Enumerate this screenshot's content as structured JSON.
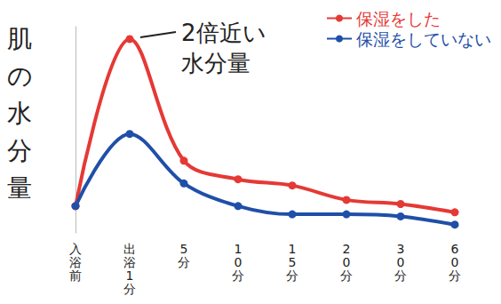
{
  "chart_data": {
    "type": "line",
    "y_label": "肌の水分量",
    "annotation": "2倍近い水分量",
    "categories": [
      "入浴前",
      "出浴1分",
      "5分",
      "10分",
      "15分",
      "20分",
      "30分",
      "60分"
    ],
    "series": [
      {
        "name": "保湿をした",
        "color": "#e53935",
        "values": [
          13,
          94,
          35,
          26,
          23,
          16,
          14,
          10
        ]
      },
      {
        "name": "保湿をしていない",
        "color": "#1f4fa8",
        "values": [
          13,
          48,
          24,
          13,
          9,
          9,
          8,
          4
        ]
      }
    ],
    "ylim": [
      0,
      100
    ],
    "yticks": [],
    "tick_labels": "x",
    "grid": false,
    "legend": "upper right",
    "marker": "circle",
    "line_style": "solid"
  }
}
